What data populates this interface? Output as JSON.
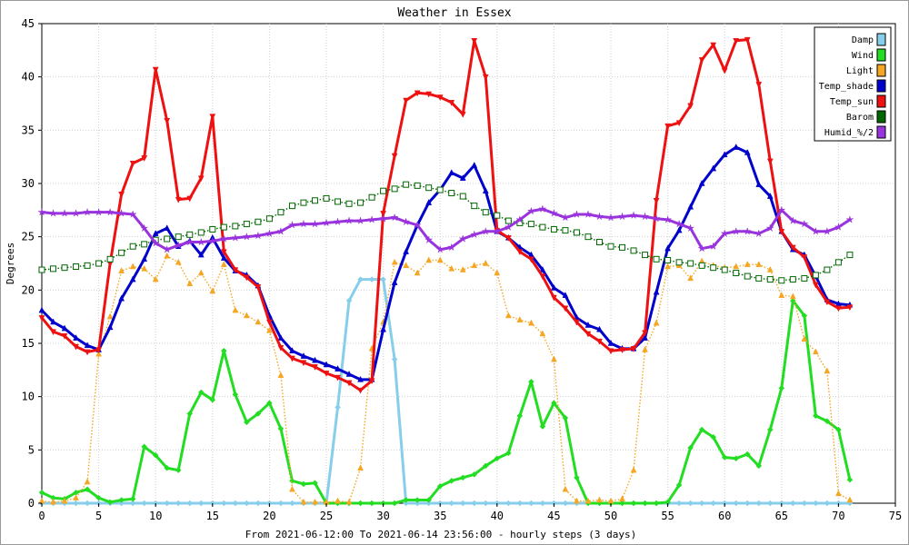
{
  "chart_data": {
    "type": "line",
    "title": "Weather in Essex",
    "xlabel": "From 2021-06-12:00 To 2021-06-14 23:56:00 - hourly steps (3 days)",
    "ylabel": "Degrees",
    "xlim": [
      0,
      75
    ],
    "ylim": [
      0,
      45
    ],
    "x_ticks": [
      0,
      5,
      10,
      15,
      20,
      25,
      30,
      35,
      40,
      45,
      50,
      55,
      60,
      65,
      70,
      75
    ],
    "y_ticks": [
      0,
      5,
      10,
      15,
      20,
      25,
      30,
      35,
      40,
      45
    ],
    "grid": true,
    "legend_position": "top-right",
    "x": [
      0,
      1,
      2,
      3,
      4,
      5,
      6,
      7,
      8,
      9,
      10,
      11,
      12,
      13,
      14,
      15,
      16,
      17,
      18,
      19,
      20,
      21,
      22,
      23,
      24,
      25,
      26,
      27,
      28,
      29,
      30,
      31,
      32,
      33,
      34,
      35,
      36,
      37,
      38,
      39,
      40,
      41,
      42,
      43,
      44,
      45,
      46,
      47,
      48,
      49,
      50,
      51,
      52,
      53,
      54,
      55,
      56,
      57,
      58,
      59,
      60,
      61,
      62,
      63,
      64,
      65,
      66,
      67,
      68,
      69,
      70,
      71
    ],
    "series": [
      {
        "name": "Damp",
        "color": "#87ceeb",
        "style": "solid",
        "marker": "diamond",
        "values": [
          0,
          0,
          0,
          0,
          0,
          0,
          0,
          0,
          0,
          0,
          0,
          0,
          0,
          0,
          0,
          0,
          0,
          0,
          0,
          0,
          0,
          0,
          0,
          0,
          0,
          0,
          9,
          19,
          21,
          21,
          21,
          13.5,
          0,
          0,
          0,
          0,
          0,
          0,
          0,
          0,
          0,
          0,
          0,
          0,
          0,
          0,
          0,
          0,
          0,
          0,
          0,
          0,
          0,
          0,
          0,
          0,
          0,
          0,
          0,
          0,
          0,
          0,
          0,
          0,
          0,
          0,
          0,
          0,
          0,
          0,
          0,
          0
        ]
      },
      {
        "name": "Wind",
        "color": "#22dd22",
        "style": "solid",
        "marker": "diamond",
        "values": [
          1,
          0.5,
          0.4,
          1,
          1.3,
          0.5,
          0.1,
          0.3,
          0.4,
          5.3,
          4.5,
          3.3,
          3.1,
          8.4,
          10.4,
          9.7,
          14.3,
          10.2,
          7.6,
          8.4,
          9.4,
          7,
          2.1,
          1.8,
          1.9,
          0,
          0,
          0,
          0,
          0,
          0,
          0,
          0.3,
          0.3,
          0.3,
          1.6,
          2.1,
          2.4,
          2.7,
          3.5,
          4.2,
          4.7,
          8.2,
          11.4,
          7.2,
          9.4,
          8,
          2.4,
          0,
          0,
          0,
          0,
          0,
          0,
          0,
          0.1,
          1.7,
          5.2,
          6.9,
          6.2,
          4.3,
          4.2,
          4.6,
          3.5,
          6.9,
          10.8,
          19,
          17.6,
          8.2,
          7.7,
          6.9,
          2.2
        ]
      },
      {
        "name": "Light",
        "color": "#f5a623",
        "style": "dotted",
        "marker": "triangle",
        "values": [
          0.2,
          0.1,
          0.2,
          0.5,
          2,
          14,
          17.5,
          21.8,
          22.2,
          22,
          21,
          23.2,
          22.6,
          20.6,
          21.6,
          19.9,
          22.4,
          18.1,
          17.6,
          17,
          16.2,
          12,
          1.3,
          0.1,
          0.1,
          0.1,
          0.2,
          0.1,
          3.3,
          14.5,
          17,
          22.6,
          22.3,
          21.6,
          22.8,
          22.8,
          22,
          21.9,
          22.3,
          22.5,
          21.6,
          17.6,
          17.2,
          16.9,
          15.9,
          13.5,
          1.3,
          0.2,
          0.2,
          0.3,
          0.2,
          0.4,
          3.1,
          14.4,
          16.9,
          22.2,
          22.3,
          21.1,
          22.7,
          22.3,
          22.1,
          22.2,
          22.4,
          22.4,
          21.9,
          19.5,
          19.4,
          15.4,
          14.2,
          12.4,
          0.9,
          0.3
        ]
      },
      {
        "name": "Temp_shade",
        "color": "#0000cc",
        "style": "solid",
        "marker": "triangle",
        "values": [
          18.1,
          17,
          16.4,
          15.5,
          14.8,
          14.4,
          16.5,
          19.2,
          21,
          22.9,
          25.3,
          25.8,
          24.1,
          24.6,
          23.3,
          24.9,
          23,
          21.8,
          21.4,
          20.4,
          17.6,
          15.5,
          14.3,
          13.8,
          13.4,
          13,
          12.6,
          12.1,
          11.6,
          11.6,
          16.3,
          20.7,
          23.6,
          26.1,
          28.2,
          29.4,
          31,
          30.5,
          31.7,
          29.3,
          25.5,
          24.9,
          24,
          23.3,
          21.9,
          20.2,
          19.5,
          17.4,
          16.7,
          16.3,
          15,
          14.5,
          14.5,
          15.5,
          19.8,
          23.9,
          25.6,
          27.8,
          30,
          31.4,
          32.7,
          33.4,
          32.9,
          29.9,
          28.8,
          25.5,
          23.8,
          23.3,
          21.3,
          19.1,
          18.7,
          18.6
        ]
      },
      {
        "name": "Temp_sun",
        "color": "#ee1111",
        "style": "solid",
        "marker": "triangle-down",
        "values": [
          17.4,
          16.1,
          15.7,
          14.7,
          14.2,
          14.4,
          22.5,
          29,
          31.9,
          32.4,
          40.7,
          35.9,
          28.5,
          28.6,
          30.5,
          36.3,
          23.6,
          21.9,
          21.2,
          20.3,
          17,
          14.6,
          13.6,
          13.2,
          12.8,
          12.2,
          11.8,
          11.3,
          10.6,
          11.5,
          27.2,
          32.6,
          37.8,
          38.5,
          38.4,
          38.1,
          37.6,
          36.5,
          43.4,
          40,
          25.6,
          24.9,
          23.6,
          22.9,
          21.3,
          19.3,
          18.3,
          17,
          15.9,
          15.2,
          14.3,
          14.4,
          14.5,
          16,
          28.4,
          35.4,
          35.7,
          37.3,
          41.6,
          43,
          40.6,
          43.4,
          43.5,
          39.3,
          32.1,
          25.5,
          24,
          23.1,
          20.5,
          18.9,
          18.3,
          18.4
        ]
      },
      {
        "name": "Barom",
        "color": "#006600",
        "style": "dotted",
        "marker": "square",
        "values": [
          21.9,
          22,
          22.1,
          22.2,
          22.3,
          22.5,
          22.9,
          23.5,
          24.1,
          24.3,
          24.7,
          24.8,
          25,
          25.2,
          25.4,
          25.7,
          25.9,
          26,
          26.2,
          26.4,
          26.7,
          27.3,
          27.9,
          28.2,
          28.4,
          28.6,
          28.3,
          28.1,
          28.2,
          28.7,
          29.3,
          29.5,
          29.9,
          29.8,
          29.6,
          29.4,
          29.1,
          28.8,
          27.9,
          27.3,
          27,
          26.5,
          26.3,
          26.2,
          25.9,
          25.7,
          25.6,
          25.4,
          25,
          24.5,
          24.1,
          24,
          23.7,
          23.3,
          22.9,
          22.8,
          22.6,
          22.5,
          22.3,
          22.1,
          21.9,
          21.6,
          21.3,
          21.1,
          21,
          20.9,
          21,
          21.1,
          21.4,
          21.9,
          22.6,
          23.3
        ]
      },
      {
        "name": "Humid_%/2",
        "color": "#9933dd",
        "style": "solid",
        "marker": "star",
        "values": [
          27.3,
          27.2,
          27.2,
          27.2,
          27.3,
          27.3,
          27.3,
          27.2,
          27.1,
          25.8,
          24.4,
          23.8,
          24.2,
          24.5,
          24.5,
          24.6,
          24.8,
          24.9,
          25,
          25.1,
          25.3,
          25.5,
          26.1,
          26.2,
          26.2,
          26.3,
          26.4,
          26.5,
          26.5,
          26.6,
          26.7,
          26.8,
          26.4,
          26.1,
          24.7,
          23.8,
          24,
          24.8,
          25.2,
          25.5,
          25.5,
          25.9,
          26.6,
          27.4,
          27.6,
          27.2,
          26.8,
          27.1,
          27.1,
          26.9,
          26.8,
          26.9,
          27,
          26.9,
          26.7,
          26.6,
          26.2,
          25.8,
          23.9,
          24.1,
          25.3,
          25.5,
          25.5,
          25.3,
          25.8,
          27.5,
          26.5,
          26.2,
          25.5,
          25.5,
          25.9,
          26.6
        ]
      }
    ]
  }
}
